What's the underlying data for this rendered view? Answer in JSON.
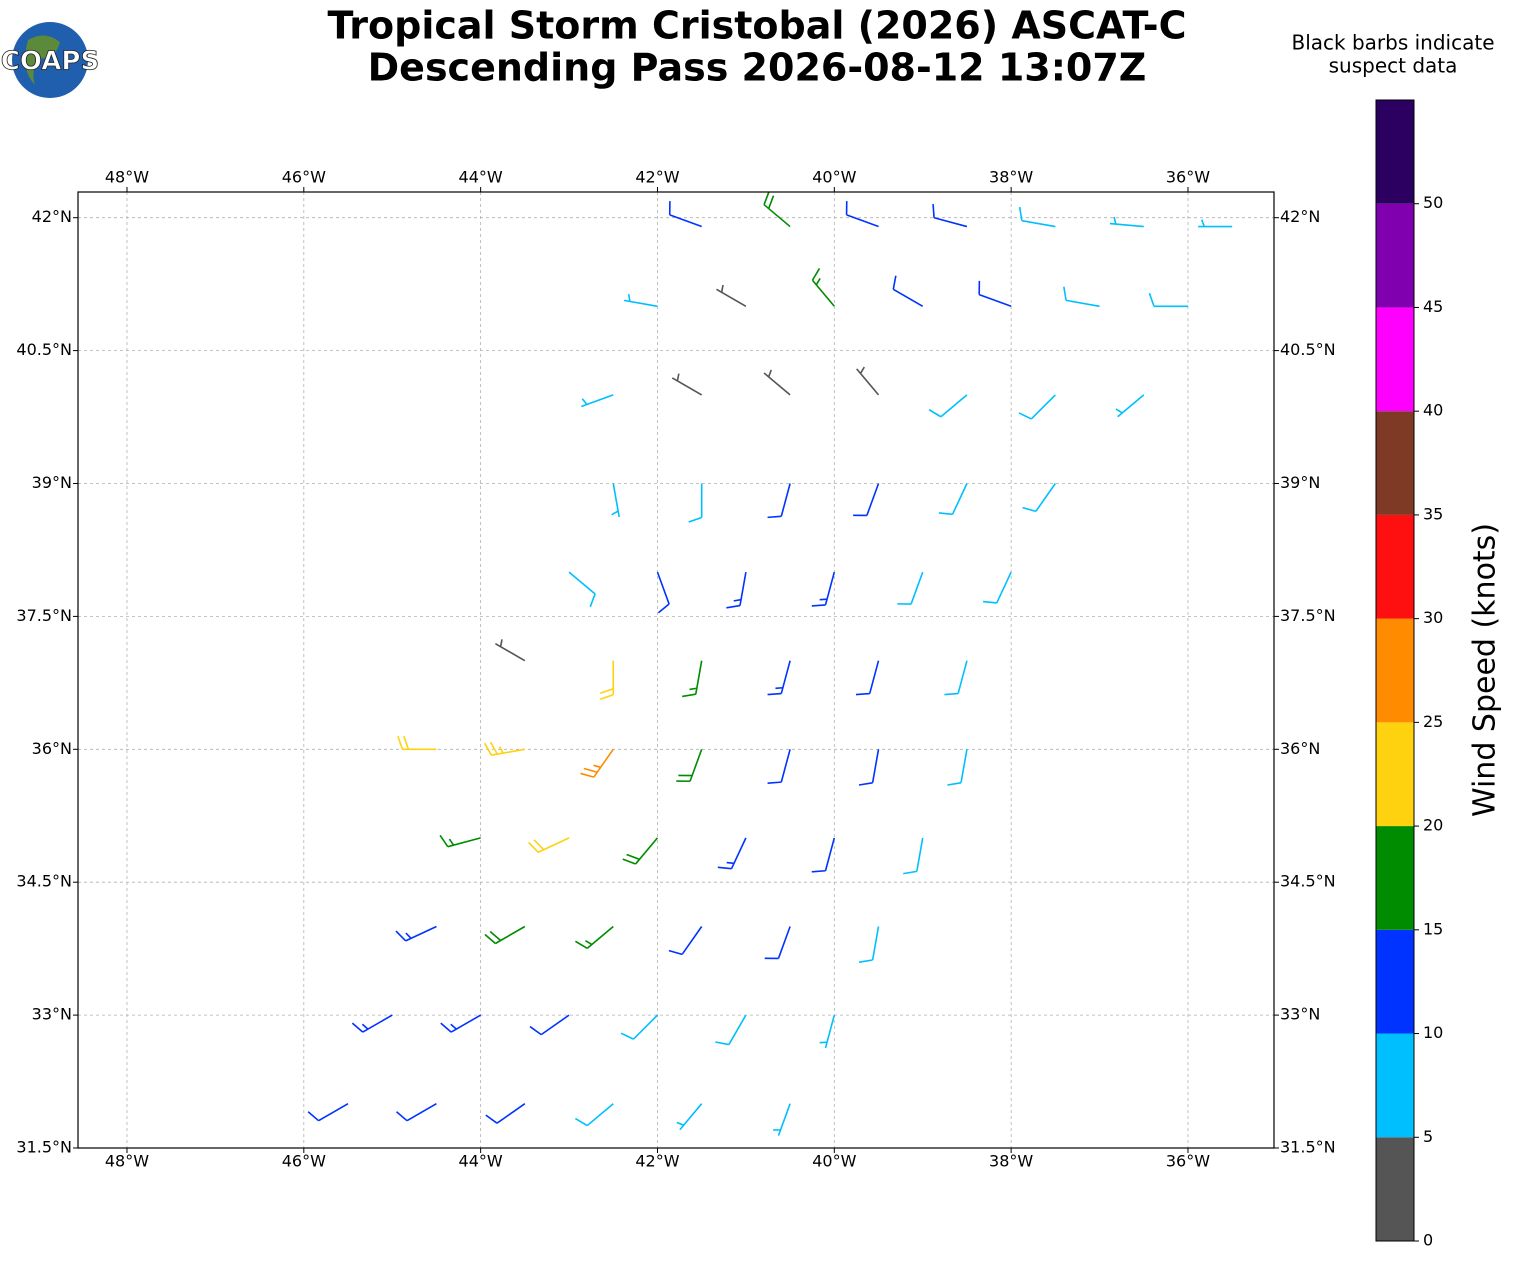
{
  "logo_text": "COAPS",
  "chart_data": {
    "type": "barbs",
    "title": [
      "Tropical Storm Cristobal (2026) ASCAT-C",
      "Descending Pass 2026-08-12 13:07Z"
    ],
    "note": [
      "Black barbs indicate",
      "suspect data"
    ],
    "xlim": [
      -48.554,
      -35.027
    ],
    "ylim": [
      31.5,
      42.29
    ],
    "xticks": [
      {
        "value": -48,
        "label": "48°W"
      },
      {
        "value": -46,
        "label": "46°W"
      },
      {
        "value": -44,
        "label": "44°W"
      },
      {
        "value": -42,
        "label": "42°W"
      },
      {
        "value": -40,
        "label": "40°W"
      },
      {
        "value": -38,
        "label": "38°W"
      },
      {
        "value": -36,
        "label": "36°W"
      }
    ],
    "yticks": [
      {
        "value": 31.5,
        "label": "31.5°N"
      },
      {
        "value": 33,
        "label": "33°N"
      },
      {
        "value": 34.5,
        "label": "34.5°N"
      },
      {
        "value": 36,
        "label": "36°N"
      },
      {
        "value": 37.5,
        "label": "37.5°N"
      },
      {
        "value": 39,
        "label": "39°N"
      },
      {
        "value": 40.5,
        "label": "40.5°N"
      },
      {
        "value": 42,
        "label": "42°N"
      }
    ],
    "grid": true,
    "barbs": {
      "lon": [
        -45.5,
        -44.5,
        -43.5,
        -42.5,
        -41.5,
        -40.5,
        -45,
        -44,
        -43,
        -42,
        -41,
        -40,
        -44.5,
        -43.5,
        -42.5,
        -41.5,
        -40.5,
        -39.5,
        -44,
        -43,
        -42,
        -41,
        -40,
        -39,
        -44.5,
        -43.5,
        -42.5,
        -41.5,
        -40.5,
        -39.5,
        -38.5,
        -43.5,
        -42.5,
        -41.5,
        -40.5,
        -39.5,
        -38.5,
        -43,
        -42,
        -41,
        -40,
        -39,
        -38,
        -42.5,
        -41.5,
        -40.5,
        -39.5,
        -38.5,
        -37.5,
        -42.5,
        -41.5,
        -40.5,
        -39.5,
        -38.5,
        -37.5,
        -36.5,
        -42,
        -41,
        -40,
        -39,
        -38,
        -37,
        -36,
        -41.5,
        -40.5,
        -39.5,
        -38.5,
        -37.5,
        -36.5,
        -35.5
      ],
      "lat": [
        32,
        32,
        32,
        32,
        32,
        32,
        33,
        33,
        33,
        33,
        33,
        33,
        34,
        34,
        34,
        34,
        34,
        34,
        35,
        35,
        35,
        35,
        35,
        35,
        36,
        36,
        36,
        36,
        36,
        36,
        36,
        37,
        37,
        37,
        37,
        37,
        37,
        38,
        38,
        38,
        38,
        38,
        38,
        39,
        39,
        39,
        39,
        39,
        39,
        40,
        40,
        40,
        40,
        40,
        40,
        40,
        41,
        41,
        41,
        41,
        41,
        41,
        41,
        41.9,
        41.9,
        41.9,
        41.9,
        41.9,
        41.9,
        41.9
      ],
      "speed": [
        12,
        12,
        11,
        9,
        7,
        6,
        13,
        14,
        12,
        9,
        8,
        7,
        14,
        18,
        16,
        12,
        10,
        8,
        17,
        22,
        18,
        13,
        12,
        9,
        21,
        24,
        27,
        18,
        12,
        11,
        8,
        4,
        22,
        17,
        13,
        12,
        8,
        8,
        12,
        13,
        13,
        9,
        8,
        7,
        9,
        12,
        12,
        8,
        8,
        7,
        4,
        3,
        4,
        8,
        9,
        7,
        6,
        4,
        16,
        12,
        11,
        9,
        8,
        12,
        18,
        12,
        11,
        8,
        7,
        7
      ],
      "direction": [
        240,
        240,
        235,
        230,
        220,
        200,
        240,
        240,
        235,
        225,
        210,
        195,
        245,
        240,
        230,
        215,
        200,
        190,
        255,
        245,
        220,
        205,
        195,
        190,
        270,
        260,
        215,
        200,
        195,
        190,
        190,
        300,
        180,
        190,
        195,
        195,
        195,
        130,
        160,
        190,
        195,
        200,
        205,
        170,
        180,
        195,
        200,
        205,
        215,
        250,
        300,
        310,
        320,
        230,
        225,
        230,
        280,
        300,
        320,
        300,
        290,
        280,
        270,
        290,
        310,
        290,
        285,
        280,
        275,
        270
      ]
    },
    "colorbar": {
      "label": "Wind Speed (knots)",
      "bounds": [
        0,
        5,
        10,
        15,
        20,
        25,
        30,
        35,
        40,
        45,
        50,
        55
      ],
      "colors": [
        "#555555",
        "#00bfff",
        "#0033ff",
        "#008c00",
        "#ffd20f",
        "#ff8c00",
        "#ff1010",
        "#7f3a26",
        "#ff00ff",
        "#8000b0",
        "#2b0060"
      ],
      "ticks": [
        0,
        5,
        10,
        15,
        20,
        25,
        30,
        35,
        40,
        45,
        50
      ]
    }
  }
}
